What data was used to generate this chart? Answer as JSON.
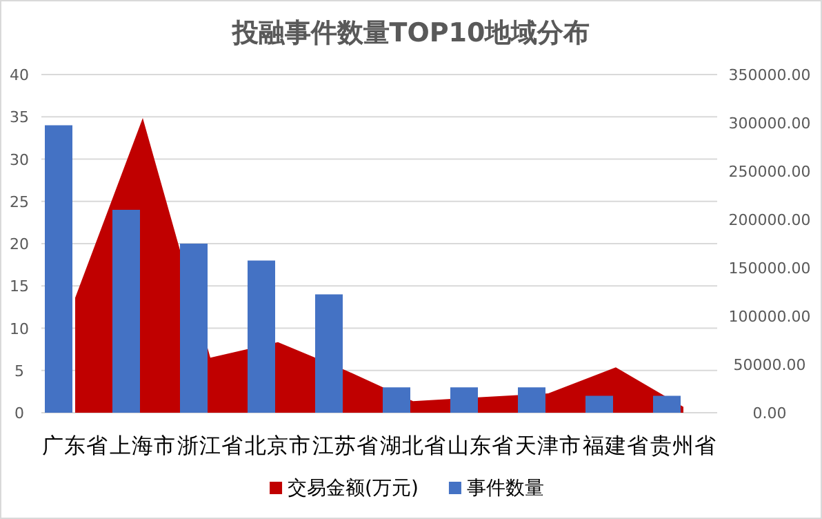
{
  "chart_data": {
    "type": "bar",
    "title": "投融事件数量TOP10地域分布",
    "categories": [
      "广东省",
      "上海市",
      "浙江省",
      "北京市",
      "江苏省",
      "湖北省",
      "山东省",
      "天津市",
      "福建省",
      "贵州省"
    ],
    "series": [
      {
        "name": "交易金额(万元)",
        "type": "area",
        "axis": "y2",
        "color": "#c00000",
        "values": [
          119000,
          305000,
          57000,
          73000,
          44000,
          12000,
          16000,
          20000,
          47000,
          6000
        ]
      },
      {
        "name": "事件数量",
        "color": "#4472c4",
        "values": [
          34,
          24,
          20,
          18,
          14,
          3,
          3,
          3,
          2,
          2
        ]
      }
    ],
    "ylim": [
      0,
      40
    ],
    "yticks": [
      0,
      5,
      10,
      15,
      20,
      25,
      30,
      35,
      40
    ],
    "y2lim": [
      0,
      350000
    ],
    "y2ticks": [
      {
        "value": 0,
        "label": "0.00"
      },
      {
        "value": 50000,
        "label": "50000.00"
      },
      {
        "value": 100000,
        "label": "100000.00"
      },
      {
        "value": 150000,
        "label": "150000.00"
      },
      {
        "value": 200000,
        "label": "200000.00"
      },
      {
        "value": 250000,
        "label": "250000.00"
      },
      {
        "value": 300000,
        "label": "300000.00"
      },
      {
        "value": 350000,
        "label": "350000.00"
      }
    ],
    "grid": "y",
    "legend": "bottom"
  }
}
